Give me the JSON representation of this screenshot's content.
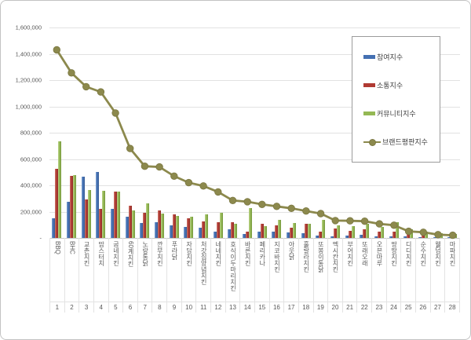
{
  "legend": {
    "position": "top-right"
  },
  "axes": {
    "y_ticks": [
      "1,600,000",
      "1,400,000",
      "1,200,000",
      "1,000,000",
      "800,000",
      "600,000",
      "400,000",
      "200,000",
      "-"
    ]
  },
  "chart_data": {
    "type": "bar",
    "title": "",
    "xlabel": "",
    "ylabel": "",
    "ylim": [
      0,
      1600000
    ],
    "grid": true,
    "legend_position": "top-right",
    "categories": [
      "BBQ",
      "BHC",
      "교촌치킨",
      "맘스터치",
      "굽네치킨",
      "60계치킨",
      "노랑통닭",
      "깐부치킨",
      "푸라닭",
      "자담치킨",
      "처갓집양념치킨",
      "네네치킨",
      "호식이두마리치킨",
      "바른치킨",
      "페리카나",
      "지코바치킨",
      "아웃닭",
      "훌랄라치킨",
      "또봉이통닭",
      "멕시칸치킨",
      "부어치킨",
      "또래오래",
      "오븐마루",
      "땅땅치킨",
      "디디치킨",
      "순수치킨",
      "웰덤치킨",
      "마파치킨"
    ],
    "category_indices": [
      1,
      2,
      3,
      4,
      5,
      6,
      7,
      8,
      9,
      10,
      11,
      12,
      13,
      14,
      15,
      16,
      17,
      18,
      19,
      20,
      21,
      22,
      23,
      24,
      25,
      26,
      27,
      28
    ],
    "series": [
      {
        "name": "참여지수",
        "type": "bar",
        "color": "#4470b2",
        "values": [
          147000,
          272000,
          464000,
          500000,
          220000,
          163000,
          113000,
          119000,
          95000,
          82000,
          77000,
          48000,
          67000,
          30000,
          45000,
          45000,
          40000,
          35000,
          20000,
          15000,
          18000,
          25000,
          12000,
          15000,
          10000,
          8000,
          5000,
          5000
        ]
      },
      {
        "name": "소통지수",
        "type": "bar",
        "color": "#b03a33",
        "values": [
          524000,
          474000,
          292000,
          220000,
          355000,
          242000,
          192000,
          208000,
          180000,
          147000,
          127000,
          117000,
          121000,
          48000,
          110000,
          95000,
          75000,
          110000,
          50000,
          70000,
          55000,
          65000,
          45000,
          50000,
          45000,
          30000,
          25000,
          20000
        ]
      },
      {
        "name": "커뮤니티지수",
        "type": "bar",
        "color": "#94b854",
        "values": [
          732000,
          480000,
          365000,
          359000,
          355000,
          207000,
          262000,
          185000,
          168000,
          159000,
          180000,
          192000,
          107000,
          226000,
          90000,
          140000,
          115000,
          110000,
          135000,
          95000,
          90000,
          110000,
          85000,
          120000,
          65000,
          45000,
          35000,
          30000
        ]
      },
      {
        "name": "브랜드평판지수",
        "type": "line",
        "color": "#8c894d",
        "marker_stroke": "#7a7741",
        "values": [
          1430000,
          1255000,
          1150000,
          1110000,
          950000,
          680000,
          545000,
          540000,
          470000,
          420000,
          395000,
          350000,
          285000,
          275000,
          255000,
          240000,
          225000,
          205000,
          185000,
          132000,
          130000,
          127000,
          107000,
          97000,
          50000,
          43000,
          25000,
          20000
        ]
      }
    ]
  }
}
